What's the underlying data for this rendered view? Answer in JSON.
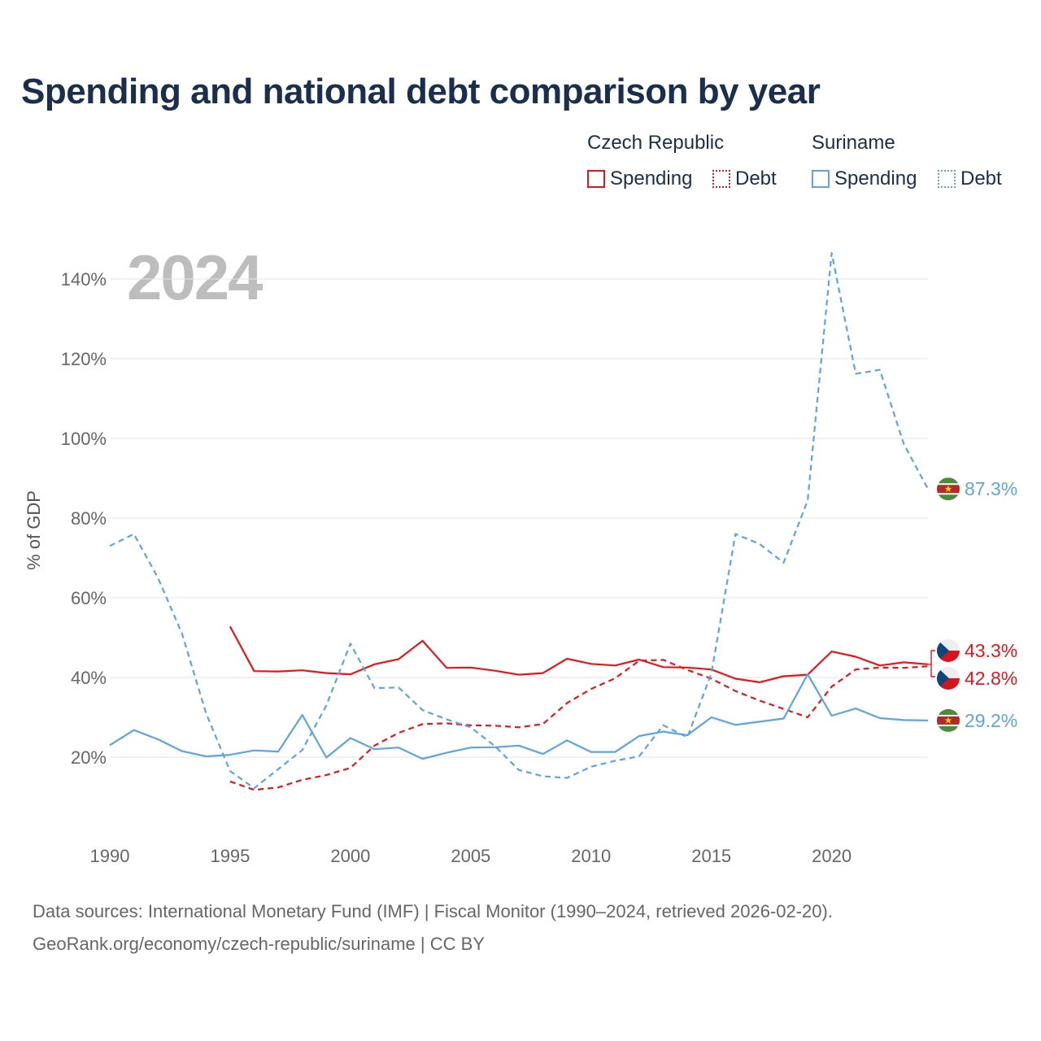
{
  "title": "Spending and national debt comparison by year",
  "year_stamp": "2024",
  "legend": {
    "groups": [
      {
        "name": "Czech Republic",
        "color": "#e8161a",
        "items": [
          {
            "label": "Spending",
            "style": "solid"
          },
          {
            "label": "Debt",
            "style": "dotted"
          }
        ]
      },
      {
        "name": "Suriname",
        "color": "#5ba4e6",
        "items": [
          {
            "label": "Spending",
            "style": "solid"
          },
          {
            "label": "Debt",
            "style": "dotted"
          }
        ]
      }
    ]
  },
  "end_labels": {
    "sr_debt": "87.3%",
    "cz_spending": "43.3%",
    "cz_debt": "42.8%",
    "sr_spending": "29.2%"
  },
  "source_lines": [
    "Data sources: International Monetary Fund (IMF) | Fiscal Monitor (1990–2024, retrieved 2026-02-20).",
    "GeoRank.org/economy/czech-republic/suriname | CC BY"
  ],
  "chart_data": {
    "type": "line",
    "title": "Spending and national debt comparison by year",
    "xlabel": "",
    "ylabel": "% of GDP",
    "xlim": [
      1990,
      2024
    ],
    "ylim": [
      0,
      150
    ],
    "x_ticks": [
      1990,
      1995,
      2000,
      2005,
      2010,
      2015,
      2020
    ],
    "y_ticks": [
      20,
      40,
      60,
      80,
      100,
      120,
      140
    ],
    "y_tick_labels": [
      "20%",
      "40%",
      "60%",
      "80%",
      "100%",
      "120%",
      "140%"
    ],
    "grid": true,
    "legend_position": "top-right",
    "series": [
      {
        "name": "Czech Republic Spending",
        "color": "#e8161a",
        "dash": "solid",
        "x": [
          1995,
          1996,
          1997,
          1998,
          1999,
          2000,
          2001,
          2002,
          2003,
          2004,
          2005,
          2006,
          2007,
          2008,
          2009,
          2010,
          2011,
          2012,
          2013,
          2014,
          2015,
          2016,
          2017,
          2018,
          2019,
          2020,
          2021,
          2022,
          2023,
          2024
        ],
        "values": [
          52.8,
          41.6,
          41.5,
          41.8,
          41.1,
          40.8,
          43.3,
          44.6,
          49.2,
          42.4,
          42.5,
          41.7,
          40.7,
          41.1,
          44.7,
          43.4,
          43.0,
          44.5,
          42.6,
          42.5,
          42.0,
          39.7,
          38.8,
          40.3,
          40.7,
          46.5,
          45.2,
          43.0,
          43.8,
          43.3
        ]
      },
      {
        "name": "Czech Republic Debt",
        "color": "#e8161a",
        "dash": "dashed",
        "x": [
          1995,
          1996,
          1997,
          1998,
          1999,
          2000,
          2001,
          2002,
          2003,
          2004,
          2005,
          2006,
          2007,
          2008,
          2009,
          2010,
          2011,
          2012,
          2013,
          2014,
          2015,
          2016,
          2017,
          2018,
          2019,
          2020,
          2021,
          2022,
          2023,
          2024
        ],
        "values": [
          13.9,
          11.8,
          12.4,
          14.3,
          15.5,
          17.3,
          22.9,
          26.1,
          28.3,
          28.5,
          28.0,
          27.9,
          27.5,
          28.3,
          33.6,
          37.1,
          39.8,
          44.2,
          44.4,
          41.9,
          39.7,
          36.6,
          34.2,
          32.1,
          30.0,
          37.7,
          42.0,
          42.5,
          42.4,
          42.8
        ]
      },
      {
        "name": "Suriname Spending",
        "color": "#5ba4e6",
        "dash": "solid",
        "x": [
          1990,
          1991,
          1992,
          1993,
          1994,
          1995,
          1996,
          1997,
          1998,
          1999,
          2000,
          2001,
          2002,
          2003,
          2004,
          2005,
          2006,
          2007,
          2008,
          2009,
          2010,
          2011,
          2012,
          2013,
          2014,
          2015,
          2016,
          2017,
          2018,
          2019,
          2020,
          2021,
          2022,
          2023,
          2024
        ],
        "values": [
          23.0,
          26.8,
          24.5,
          21.5,
          20.2,
          20.6,
          21.7,
          21.4,
          30.6,
          19.9,
          24.8,
          22.0,
          22.4,
          19.6,
          21.1,
          22.4,
          22.5,
          22.9,
          20.8,
          24.2,
          21.3,
          21.3,
          25.3,
          26.4,
          25.5,
          30.0,
          28.1,
          28.9,
          29.7,
          40.8,
          30.4,
          32.2,
          29.8,
          29.3,
          29.2
        ]
      },
      {
        "name": "Suriname Debt",
        "color": "#5ba4e6",
        "dash": "dashed",
        "x": [
          1990,
          1991,
          1992,
          1993,
          1994,
          1995,
          1996,
          1997,
          1998,
          1999,
          2000,
          2001,
          2002,
          2003,
          2004,
          2005,
          2006,
          2007,
          2008,
          2009,
          2010,
          2011,
          2012,
          2013,
          2014,
          2015,
          2016,
          2017,
          2018,
          2019,
          2020,
          2021,
          2022,
          2023,
          2024
        ],
        "values": [
          73.0,
          76.0,
          65.0,
          51.0,
          31.0,
          16.5,
          12.2,
          17.0,
          21.8,
          33.0,
          48.5,
          37.3,
          37.5,
          31.8,
          29.5,
          27.5,
          22.8,
          16.8,
          15.2,
          14.8,
          17.6,
          19.1,
          20.2,
          28.0,
          25.0,
          41.0,
          76.0,
          73.5,
          68.8,
          84.4,
          146.5,
          116.2,
          117.2,
          98.5,
          87.3
        ]
      }
    ]
  }
}
